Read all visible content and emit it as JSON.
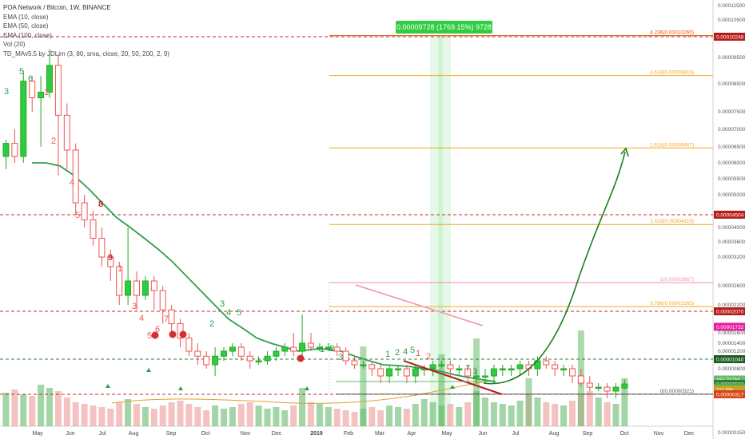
{
  "legend": {
    "title": "POA Network / Bitcoin, 1W, BINANCE",
    "lines": [
      "EMA (10, close)",
      "EMA (50, close)",
      "EMA (100, close)",
      "Vol (20)",
      "TD_MAv5.5 by JDLim (3, 80, sma, close, 20, 50, 200, 2, 9)"
    ]
  },
  "measure_label": "0.00009728 (1769.15%) 9728",
  "chart_data": {
    "type": "candlestick",
    "x_ticks": [
      "May",
      "Jun",
      "Jul",
      "Aug",
      "Sep",
      "Oct",
      "Nov",
      "Dec",
      "2019",
      "Feb",
      "Mar",
      "Apr",
      "May",
      "Jun",
      "Jul",
      "Aug",
      "Sep",
      "Oct",
      "Nov",
      "Dec"
    ],
    "y_ticks": [
      {
        "label": "0.00011500",
        "v": 0.000115
      },
      {
        "label": "0.00010500",
        "v": 0.000105
      },
      {
        "label": "0.00009500",
        "v": 9.5e-05
      },
      {
        "label": "0.00008500",
        "v": 8.5e-05
      },
      {
        "label": "0.00007500",
        "v": 7.5e-05
      },
      {
        "label": "0.00007000",
        "v": 7e-05
      },
      {
        "label": "0.00006500",
        "v": 6.5e-05
      },
      {
        "label": "0.00006000",
        "v": 6e-05
      },
      {
        "label": "0.00005500",
        "v": 5.5e-05
      },
      {
        "label": "0.00005000",
        "v": 5e-05
      },
      {
        "label": "0.00004000",
        "v": 4e-05
      },
      {
        "label": "0.00003600",
        "v": 3.6e-05
      },
      {
        "label": "0.00003200",
        "v": 3.2e-05
      },
      {
        "label": "0.00002600",
        "v": 2.6e-05
      },
      {
        "label": "0.00002200",
        "v": 2.2e-05
      },
      {
        "label": "0.00001600",
        "v": 1.6e-05
      },
      {
        "label": "0.00001400",
        "v": 1.4e-05
      },
      {
        "label": "0.00001200",
        "v": 1.2e-05
      },
      {
        "label": "0.00000800",
        "v": 8e-06
      },
      {
        "label": "0.00000600",
        "v": 6e-06
      },
      {
        "label": "0.00000400",
        "v": 4e-06
      },
      {
        "label": "0.00000150",
        "v": 1.5e-06
      }
    ],
    "price_badges": [
      {
        "label": "0.00010248",
        "v": 0.00010248,
        "color": "#b71c1c"
      },
      {
        "label": "0.00004504",
        "v": 4.504e-05,
        "color": "#b71c1c"
      },
      {
        "label": "0.00002070",
        "v": 2.07e-05,
        "color": "#b71c1c"
      },
      {
        "label": "0.00001732",
        "v": 1.732e-05,
        "color": "#e91e9e"
      },
      {
        "label": "0.00001040",
        "v": 1.04e-05,
        "color": "#1b5e20"
      },
      {
        "label": "161.747M",
        "v": 6.5e-06,
        "color": "#66bb6a"
      },
      {
        "label": "0.00000583",
        "v": 5.83e-06,
        "color": "#2e7d32"
      },
      {
        "label": "0.00000574",
        "v": 4.9e-06,
        "color": "#4caf50"
      },
      {
        "label": "111.5M",
        "v": 4.4e-06,
        "color": "#c9a227"
      },
      {
        "label": "0.00000317",
        "v": 3.17e-06,
        "color": "#d84315"
      }
    ],
    "fib_levels": [
      {
        "label": "4.236(0.00010265)",
        "v": 0.00010265,
        "color": "#e65100"
      },
      {
        "label": "3.618(0.00008815)",
        "v": 8.815e-05,
        "color": "#f5a623"
      },
      {
        "label": "2.618(0.00006467)",
        "v": 6.467e-05,
        "color": "#f5a623"
      },
      {
        "label": "1.618(0.00004119)",
        "v": 4.119e-05,
        "color": "#f5a623"
      },
      {
        "label": "1(0.00002667)",
        "v": 2.667e-05,
        "color": "#f48fb1"
      },
      {
        "label": "0.786(0.00002165)",
        "v": 2.165e-05,
        "color": "#f5a623"
      },
      {
        "label": "0(0.00000321)",
        "v": 3.21e-06,
        "color": "#555555"
      }
    ],
    "dashed_lines": [
      {
        "v": 0.00010248,
        "color": "#c62828"
      },
      {
        "v": 4.504e-05,
        "color": "#c62828"
      },
      {
        "v": 2.07e-05,
        "color": "#c62828"
      },
      {
        "v": 1.04e-05,
        "color": "#2e7d32"
      },
      {
        "v": 3.17e-06,
        "color": "#c62828"
      }
    ],
    "candles": [
      [
        6.2e-05,
        6.6e-05,
        5.8e-05,
        6.7e-05
      ],
      [
        6.6e-05,
        6.2e-05,
        6e-05,
        7e-05
      ],
      [
        6.2e-05,
        8.6e-05,
        6e-05,
        9e-05
      ],
      [
        8.6e-05,
        8e-05,
        7.5e-05,
        8.8e-05
      ],
      [
        8e-05,
        8.2e-05,
        6.5e-05,
        8.8e-05
      ],
      [
        8.2e-05,
        9.2e-05,
        8e-05,
        9.8e-05
      ],
      [
        9.2e-05,
        7.4e-05,
        5.6e-05,
        9.6e-05
      ],
      [
        7.4e-05,
        6.4e-05,
        5.8e-05,
        7.8e-05
      ],
      [
        6.4e-05,
        4.8e-05,
        4.5e-05,
        6.6e-05
      ],
      [
        4.8e-05,
        4.3e-05,
        4e-05,
        5e-05
      ],
      [
        4.3e-05,
        3.7e-05,
        3.5e-05,
        4.6e-05
      ],
      [
        3.7e-05,
        3.2e-05,
        3e-05,
        4e-05
      ],
      [
        3.2e-05,
        3e-05,
        2.7e-05,
        3.4e-05
      ],
      [
        3e-05,
        2.4e-05,
        2.2e-05,
        3.1e-05
      ],
      [
        2.4e-05,
        2.7e-05,
        2.2e-05,
        4e-05
      ],
      [
        2.7e-05,
        2.4e-05,
        2.1e-05,
        2.9e-05
      ],
      [
        2.4e-05,
        2.7e-05,
        2.3e-05,
        2.8e-05
      ],
      [
        2.7e-05,
        2.5e-05,
        2.1e-05,
        2.8e-05
      ],
      [
        2.5e-05,
        2.1e-05,
        1.8e-05,
        2.6e-05
      ],
      [
        2.1e-05,
        1.8e-05,
        1.6e-05,
        2.2e-05
      ],
      [
        1.8e-05,
        1.5e-05,
        1.3e-05,
        1.9e-05
      ],
      [
        1.5e-05,
        1.2e-05,
        1.1e-05,
        1.6e-05
      ],
      [
        1.2e-05,
        1.1e-05,
        9e-06,
        1.4e-05
      ],
      [
        1.1e-05,
        9e-06,
        8e-06,
        1.2e-05
      ],
      [
        9e-06,
        1.1e-05,
        7e-06,
        1.3e-05
      ],
      [
        1.1e-05,
        1.2e-05,
        1e-05,
        1.3e-05
      ],
      [
        1.2e-05,
        1.3e-05,
        1.1e-05,
        1.4e-05
      ],
      [
        1.3e-05,
        1.1e-05,
        1e-05,
        1.4e-05
      ],
      [
        1.1e-05,
        1e-05,
        8e-06,
        1.2e-05
      ],
      [
        1e-05,
        1e-05,
        9e-06,
        1.1e-05
      ],
      [
        1e-05,
        1.1e-05,
        9e-06,
        1.2e-05
      ],
      [
        1.1e-05,
        1.2e-05,
        1e-05,
        1.3e-05
      ],
      [
        1.2e-05,
        1.3e-05,
        1.1e-05,
        1.4e-05
      ],
      [
        1.3e-05,
        1.2e-05,
        1.1e-05,
        1.6e-05
      ],
      [
        1.2e-05,
        1.4e-05,
        1.1e-05,
        2e-05
      ],
      [
        1.4e-05,
        1.3e-05,
        1.2e-05,
        1.6e-05
      ],
      [
        1.3e-05,
        1.3e-05,
        1.2e-05,
        1.4e-05
      ],
      [
        1.3e-05,
        1.3e-05,
        1.2e-05,
        1.4e-05
      ],
      [
        1.3e-05,
        1.2e-05,
        1.1e-05,
        1.4e-05
      ],
      [
        1.2e-05,
        1e-05,
        9e-06,
        1.3e-05
      ],
      [
        1e-05,
        9e-06,
        8e-06,
        1.1e-05
      ],
      [
        9e-06,
        9e-06,
        8e-06,
        1e-05
      ],
      [
        9e-06,
        8e-06,
        7e-06,
        1e-05
      ],
      [
        8e-06,
        7e-06,
        6e-06,
        9e-06
      ],
      [
        7e-06,
        8e-06,
        6e-06,
        9e-06
      ],
      [
        8e-06,
        8e-06,
        7e-06,
        9e-06
      ],
      [
        8e-06,
        7e-06,
        6e-06,
        9e-06
      ],
      [
        7e-06,
        8e-06,
        6e-06,
        9e-06
      ],
      [
        8e-06,
        8e-06,
        7e-06,
        9e-06
      ],
      [
        8e-06,
        9e-06,
        7e-06,
        1e-05
      ],
      [
        9e-06,
        9e-06,
        8e-06,
        1e-05
      ],
      [
        9e-06,
        8e-06,
        7e-06,
        1e-05
      ],
      [
        8e-06,
        8e-06,
        7e-06,
        9e-06
      ],
      [
        8e-06,
        7e-06,
        6e-06,
        9e-06
      ],
      [
        7e-06,
        7e-06,
        6e-06,
        8e-06
      ],
      [
        7e-06,
        7e-06,
        6e-06,
        8e-06
      ],
      [
        7e-06,
        8e-06,
        6e-06,
        9e-06
      ],
      [
        8e-06,
        8e-06,
        7e-06,
        9e-06
      ],
      [
        8e-06,
        8e-06,
        7e-06,
        9e-06
      ],
      [
        8e-06,
        9e-06,
        7e-06,
        1e-05
      ],
      [
        9e-06,
        8e-06,
        7e-06,
        1e-05
      ],
      [
        8e-06,
        1e-05,
        7e-06,
        1.1e-05
      ],
      [
        1e-05,
        9e-06,
        8e-06,
        1.1e-05
      ],
      [
        9e-06,
        8e-06,
        7e-06,
        1e-05
      ],
      [
        8e-06,
        8e-06,
        7e-06,
        9e-06
      ],
      [
        8e-06,
        7e-06,
        6e-06,
        9e-06
      ],
      [
        7e-06,
        6e-06,
        5e-06,
        8e-06
      ],
      [
        6e-06,
        5e-06,
        4e-06,
        7e-06
      ],
      [
        5e-06,
        5e-06,
        4e-06,
        6e-06
      ],
      [
        5e-06,
        4e-06,
        3e-06,
        6e-06
      ],
      [
        4e-06,
        5e-06,
        3e-06,
        6e-06
      ],
      [
        4.8e-06,
        5.8e-06,
        4.5e-06,
        6.5e-06
      ]
    ],
    "ema_line": [
      6e-05,
      6e-05,
      5.9e-05,
      5.6e-05,
      5.2e-05,
      4.8e-05,
      4.4e-05,
      4e-05,
      3.7e-05,
      3.4e-05,
      3.1e-05,
      2.8e-05,
      2.5e-05,
      2.2e-05,
      1.9e-05,
      1.7e-05,
      1.5e-05,
      1.4e-05,
      1.3e-05,
      1.2e-05,
      1.25e-05,
      1.25e-05,
      1.2e-05,
      1.1e-05,
      1e-05,
      9e-06,
      8.8e-06,
      8.5e-06,
      8e-06,
      7.7e-06,
      7.2e-06,
      6.8e-06,
      6.5e-06,
      6.2e-06
    ],
    "projection": [
      [
        6e-06,
        5.8e-06
      ],
      [
        6e-06,
        7e-06
      ],
      [
        3e-05,
        2.35e-05
      ],
      [
        5e-05,
        6.2e-05
      ]
    ]
  }
}
